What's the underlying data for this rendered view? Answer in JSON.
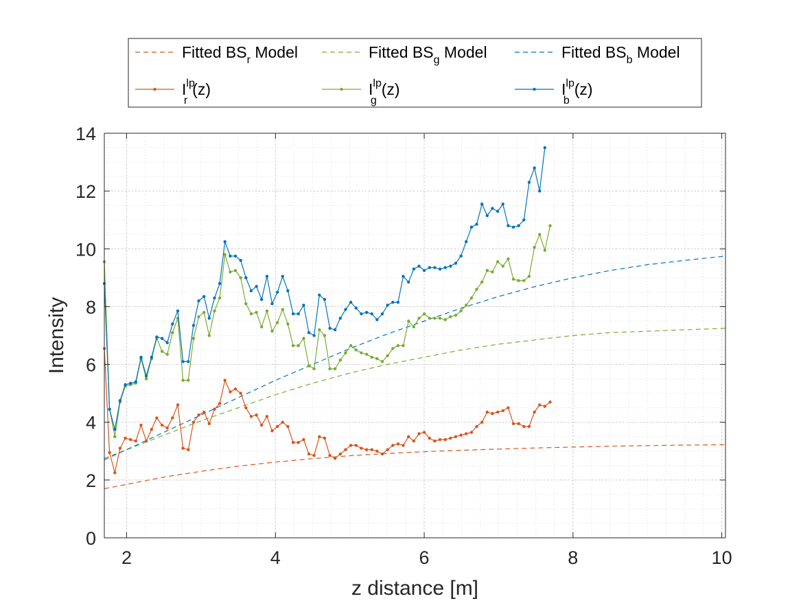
{
  "chart_data": {
    "type": "line",
    "xlabel": "z distance [m]",
    "ylabel": "Intensity",
    "xlim": [
      1.7,
      10.05
    ],
    "ylim": [
      0,
      14
    ],
    "xticks": [
      2,
      4,
      6,
      8,
      10
    ],
    "yticks": [
      0,
      2,
      4,
      6,
      8,
      10,
      12,
      14
    ],
    "grid": true,
    "minor_grid": true,
    "legend_location": "outside-top",
    "x_start": 1.7,
    "x_step": 0.0705,
    "series": [
      {
        "name": "I_r^lp(z)",
        "legend_label": {
          "main": "I",
          "sup": "lp",
          "sub": "r",
          "suffix": "(z)"
        },
        "color": "#D95319",
        "style": "solid-dot",
        "values": [
          6.55,
          2.95,
          2.25,
          3.1,
          3.45,
          3.4,
          3.35,
          3.9,
          3.35,
          3.75,
          4.15,
          3.9,
          3.8,
          4.15,
          4.6,
          3.1,
          3.05,
          4.0,
          4.25,
          4.35,
          3.95,
          4.45,
          4.65,
          5.45,
          5.05,
          5.15,
          5.0,
          4.5,
          4.2,
          4.25,
          3.9,
          4.2,
          3.7,
          3.85,
          4.0,
          3.85,
          3.3,
          3.3,
          3.4,
          2.9,
          2.85,
          3.5,
          3.45,
          2.85,
          2.75,
          2.9,
          3.05,
          3.2,
          3.2,
          3.1,
          3.05,
          3.05,
          3.0,
          2.9,
          3.05,
          3.2,
          3.25,
          3.2,
          3.5,
          3.35,
          3.6,
          3.65,
          3.45,
          3.35,
          3.4,
          3.4,
          3.45,
          3.5,
          3.55,
          3.6,
          3.65,
          3.85,
          4.0,
          4.35,
          4.3,
          4.35,
          4.4,
          4.5,
          3.95,
          3.95,
          3.85,
          3.85,
          4.35,
          4.6,
          4.55,
          4.7
        ]
      },
      {
        "name": "I_g^lp(z)",
        "legend_label": {
          "main": "I",
          "sup": "lp",
          "sub": "g",
          "suffix": "(z)"
        },
        "color": "#77AC30",
        "style": "solid-dot",
        "values": [
          9.55,
          4.45,
          3.5,
          4.7,
          5.25,
          5.3,
          5.35,
          6.2,
          5.5,
          6.2,
          6.9,
          6.45,
          6.35,
          7.1,
          7.6,
          5.45,
          5.45,
          6.9,
          7.65,
          7.8,
          7.0,
          7.85,
          8.3,
          9.8,
          9.2,
          9.25,
          9.0,
          8.1,
          7.75,
          7.8,
          7.3,
          7.85,
          7.15,
          7.45,
          7.9,
          7.4,
          6.65,
          6.65,
          6.9,
          5.95,
          5.85,
          7.2,
          7.0,
          5.85,
          5.85,
          6.15,
          6.4,
          6.65,
          6.5,
          6.4,
          6.35,
          6.25,
          6.2,
          6.1,
          6.3,
          6.55,
          6.65,
          6.65,
          7.5,
          7.3,
          7.6,
          7.75,
          7.6,
          7.6,
          7.6,
          7.55,
          7.65,
          7.7,
          7.85,
          8.05,
          8.3,
          8.6,
          8.85,
          9.25,
          9.2,
          9.55,
          9.4,
          9.65,
          8.95,
          8.9,
          8.9,
          9.05,
          10.05,
          10.5,
          9.95,
          10.8
        ]
      },
      {
        "name": "I_b^lp(z)",
        "legend_label": {
          "main": "I",
          "sup": "lp",
          "sub": "b",
          "suffix": "(z)"
        },
        "color": "#0072BD",
        "style": "solid-dot",
        "values": [
          8.8,
          4.45,
          3.75,
          4.75,
          5.3,
          5.35,
          5.4,
          6.25,
          5.6,
          6.25,
          6.95,
          6.9,
          6.75,
          7.4,
          7.85,
          6.1,
          6.1,
          7.35,
          8.2,
          8.35,
          7.6,
          8.3,
          8.8,
          10.25,
          9.75,
          9.75,
          9.6,
          9.0,
          8.55,
          8.7,
          8.25,
          9.05,
          8.1,
          8.5,
          9.05,
          8.55,
          7.75,
          7.75,
          8.05,
          7.1,
          7.0,
          8.4,
          8.25,
          7.25,
          7.2,
          7.6,
          7.9,
          8.15,
          7.95,
          7.75,
          7.8,
          7.75,
          7.55,
          7.75,
          8.05,
          8.15,
          8.15,
          9.05,
          8.85,
          9.3,
          9.4,
          9.25,
          9.35,
          9.35,
          9.3,
          9.35,
          9.4,
          9.5,
          9.75,
          10.25,
          10.75,
          10.85,
          11.55,
          11.15,
          11.4,
          11.3,
          11.55,
          10.8,
          10.75,
          10.8,
          11.0,
          12.3,
          12.8,
          12.0,
          13.5
        ]
      },
      {
        "name": "Fitted BS_r Model",
        "legend_label": {
          "main": "Fitted BS",
          "sub": "r",
          "suffix": " Model"
        },
        "color": "#D95319",
        "style": "dashed",
        "x": [
          1.7,
          2.0,
          2.5,
          3.0,
          3.5,
          4.0,
          4.5,
          5.0,
          5.5,
          6.0,
          6.5,
          7.0,
          7.5,
          8.0,
          8.5,
          9.0,
          9.5,
          10.05
        ],
        "values": [
          1.7,
          1.85,
          2.1,
          2.3,
          2.48,
          2.62,
          2.74,
          2.84,
          2.92,
          2.98,
          3.03,
          3.07,
          3.11,
          3.14,
          3.17,
          3.19,
          3.21,
          3.22
        ]
      },
      {
        "name": "Fitted BS_g Model",
        "legend_label": {
          "main": "Fitted BS",
          "sub": "g",
          "suffix": " Model"
        },
        "color": "#77AC30",
        "style": "dashed",
        "x": [
          1.7,
          2.0,
          2.5,
          3.0,
          3.5,
          4.0,
          4.5,
          5.0,
          5.5,
          6.0,
          6.5,
          7.0,
          7.5,
          8.0,
          8.5,
          9.0,
          9.5,
          10.05
        ],
        "values": [
          2.75,
          3.05,
          3.55,
          4.05,
          4.5,
          4.95,
          5.35,
          5.7,
          6.0,
          6.25,
          6.5,
          6.7,
          6.85,
          7.0,
          7.1,
          7.15,
          7.2,
          7.25
        ]
      },
      {
        "name": "Fitted BS_b Model",
        "legend_label": {
          "main": "Fitted BS",
          "sub": "b",
          "suffix": " Model"
        },
        "color": "#0072BD",
        "style": "dashed",
        "x": [
          1.7,
          2.0,
          2.5,
          3.0,
          3.5,
          4.0,
          4.5,
          5.0,
          5.5,
          6.0,
          6.5,
          7.0,
          7.5,
          8.0,
          8.5,
          9.0,
          9.5,
          10.05
        ],
        "values": [
          2.7,
          3.05,
          3.65,
          4.25,
          4.85,
          5.45,
          6.0,
          6.55,
          7.05,
          7.5,
          7.95,
          8.35,
          8.7,
          9.0,
          9.25,
          9.45,
          9.6,
          9.75
        ]
      }
    ]
  }
}
